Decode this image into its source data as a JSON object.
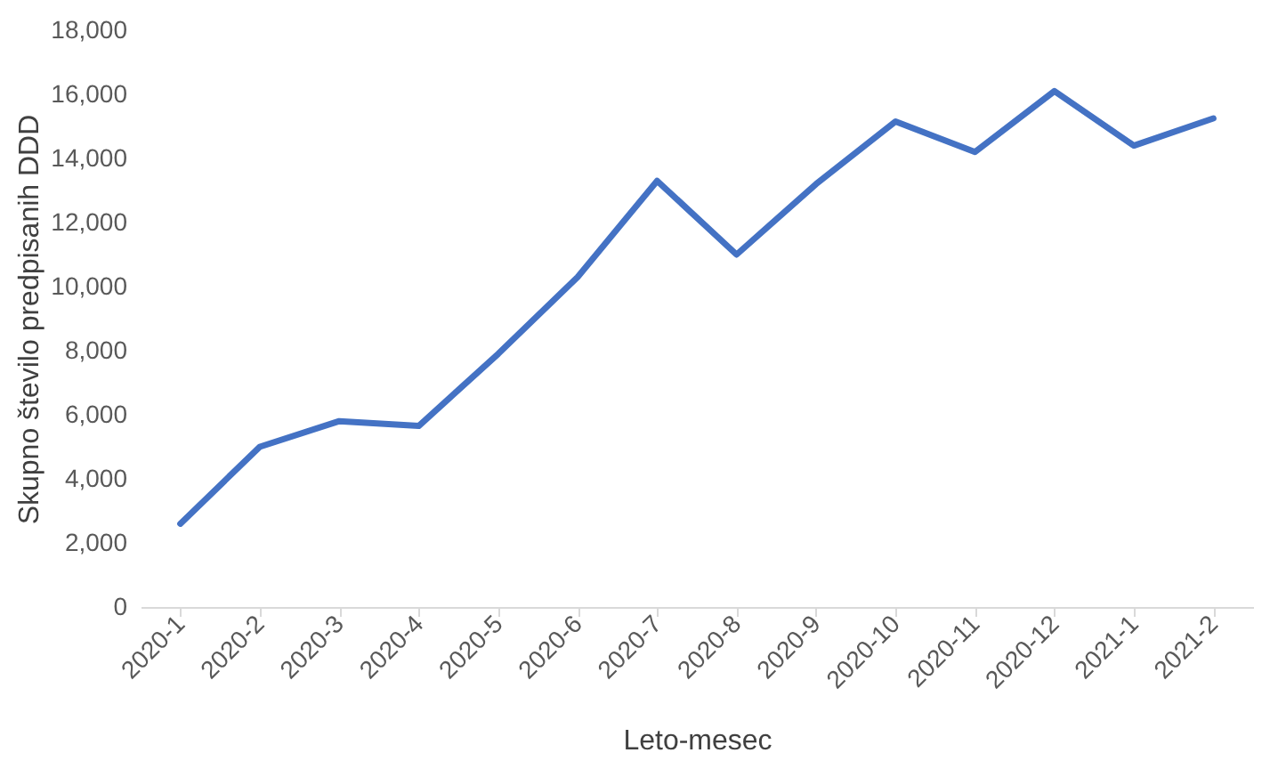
{
  "chart_data": {
    "type": "line",
    "xlabel": "Leto-mesec",
    "ylabel": "Skupno število predpisanih DDD",
    "categories": [
      "2020-1",
      "2020-2",
      "2020-3",
      "2020-4",
      "2020-5",
      "2020-6",
      "2020-7",
      "2020-8",
      "2020-9",
      "2020-10",
      "2020-11",
      "2020-12",
      "2021-1",
      "2021-2"
    ],
    "series": [
      {
        "color": "#4472c4",
        "values": [
          2600,
          5000,
          5800,
          5650,
          7900,
          10300,
          13300,
          11000,
          13200,
          15150,
          14200,
          16100,
          14400,
          15250
        ]
      }
    ],
    "ylim": [
      0,
      18000
    ],
    "yticks": [
      0,
      {
        "value": 2000,
        "label": "2,000"
      },
      {
        "value": 4000,
        "label": "4,000"
      },
      {
        "value": 6000,
        "label": "6,000"
      },
      {
        "value": 8000,
        "label": "8,000"
      },
      {
        "value": 10000,
        "label": "10,000"
      },
      {
        "value": 12000,
        "label": "12,000"
      },
      {
        "value": 14000,
        "label": "14,000"
      },
      {
        "value": 16000,
        "label": "16,000"
      },
      {
        "value": 18000,
        "label": "18,000"
      }
    ],
    "grid": false,
    "marker": "none",
    "line_style": "solid"
  }
}
